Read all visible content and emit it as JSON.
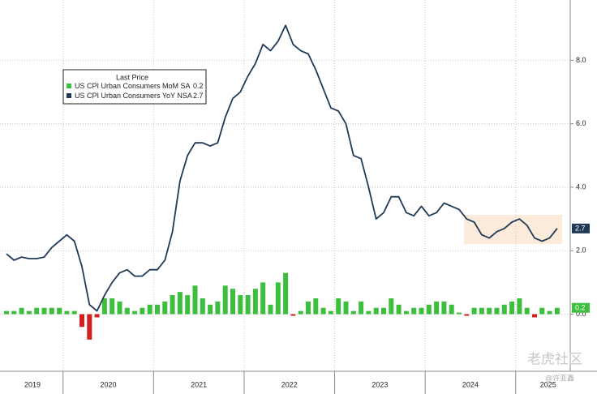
{
  "chart_data": {
    "type": "bar_line",
    "legend_title": "Last Price",
    "categories": [
      null,
      null,
      null,
      null,
      null,
      null,
      null,
      null,
      null,
      null,
      null,
      null,
      null,
      null,
      null,
      null,
      null,
      null,
      null,
      null,
      null,
      null,
      null,
      null,
      null,
      null,
      null,
      null,
      null,
      null,
      null,
      null,
      null,
      null,
      null,
      null,
      null,
      null,
      null,
      null,
      null,
      null,
      null,
      null,
      null,
      null,
      null,
      null,
      null,
      null,
      null,
      null,
      null,
      null,
      null,
      null,
      null,
      null,
      null,
      null,
      null,
      null,
      null,
      null,
      null,
      null,
      null,
      null,
      null,
      null,
      null,
      null,
      null,
      null
    ],
    "year_labels": [
      "2019",
      "2020",
      "2021",
      "2022",
      "2023",
      "2024",
      "2025"
    ],
    "series": [
      {
        "name": "US CPI Urban Consumers MoM SA",
        "type": "bar",
        "color": "#3cbf3c",
        "negative_color": "#d41f1f",
        "values": [
          0.1,
          0.1,
          0.2,
          0.1,
          0.2,
          0.2,
          0.2,
          0.2,
          0.1,
          0.1,
          -0.4,
          -0.8,
          -0.1,
          0.5,
          0.5,
          0.4,
          0.2,
          0.1,
          0.2,
          0.3,
          0.3,
          0.4,
          0.6,
          0.7,
          0.6,
          0.9,
          0.5,
          0.3,
          0.4,
          0.9,
          0.8,
          0.6,
          0.6,
          0.8,
          1.0,
          0.3,
          1.0,
          1.3,
          -0.05,
          0.1,
          0.4,
          0.5,
          0.2,
          0.1,
          0.5,
          0.4,
          0.1,
          0.4,
          0.1,
          0.2,
          0.2,
          0.5,
          0.3,
          0.1,
          0.2,
          0.2,
          0.3,
          0.4,
          0.4,
          0.3,
          0.05,
          -0.05,
          0.2,
          0.2,
          0.2,
          0.2,
          0.3,
          0.4,
          0.5,
          0.2,
          -0.1,
          0.2,
          0.1,
          0.2
        ]
      },
      {
        "name": "US CPI Urban Consumers YoY NSA",
        "type": "line",
        "color": "#1f3a57",
        "values": [
          1.9,
          1.7,
          1.8,
          1.75,
          1.75,
          1.8,
          2.1,
          2.3,
          2.5,
          2.3,
          1.5,
          0.3,
          0.1,
          0.6,
          1.0,
          1.3,
          1.4,
          1.2,
          1.2,
          1.4,
          1.4,
          1.7,
          2.6,
          4.2,
          5.0,
          5.4,
          5.4,
          5.3,
          5.4,
          6.2,
          6.8,
          7.0,
          7.5,
          7.9,
          8.5,
          8.3,
          8.6,
          9.1,
          8.5,
          8.3,
          8.2,
          7.7,
          7.1,
          6.5,
          6.4,
          6.0,
          5.0,
          4.9,
          4.0,
          3.0,
          3.2,
          3.7,
          3.7,
          3.2,
          3.1,
          3.4,
          3.1,
          3.2,
          3.5,
          3.4,
          3.3,
          3.0,
          2.9,
          2.5,
          2.4,
          2.6,
          2.7,
          2.9,
          3.0,
          2.8,
          2.4,
          2.3,
          2.4,
          2.7
        ]
      }
    ],
    "ylim": [
      -1.8,
      9.9
    ],
    "yticks": [
      {
        "value": 0,
        "label": "0.0"
      },
      {
        "value": 2,
        "label": "2.0"
      },
      {
        "value": 4,
        "label": "4.0"
      },
      {
        "value": 6,
        "label": "6.0"
      },
      {
        "value": 8,
        "label": "8.0"
      }
    ],
    "grid": true,
    "watermark": "老虎社区",
    "watermark_author": "@许亚鑫"
  }
}
